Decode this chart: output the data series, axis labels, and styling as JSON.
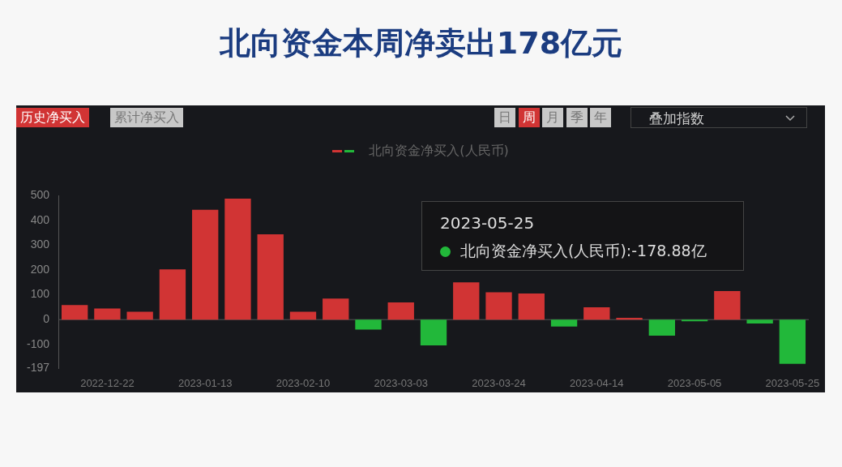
{
  "chart_data": {
    "type": "bar",
    "title": "北向资金本周净卖出178亿元",
    "categories": [
      null,
      "2022-12-22",
      null,
      null,
      "2023-01-13",
      null,
      null,
      "2023-02-10",
      null,
      null,
      "2023-03-03",
      null,
      null,
      "2023-03-24",
      null,
      null,
      "2023-04-14",
      null,
      null,
      "2023-05-05",
      null,
      null,
      "2023-05-25"
    ],
    "series": [
      {
        "name": "北向资金净买入(人民币)",
        "values": [
          59,
          45,
          32,
          203,
          443,
          488,
          344,
          32,
          85,
          -40,
          69,
          -104,
          150,
          110,
          105,
          -28,
          50,
          7,
          -65,
          -7,
          115,
          -16,
          -178.88
        ]
      }
    ],
    "colors": [
      "#d13434",
      "#d13434",
      "#d13434",
      "#d13434",
      "#d13434",
      "#d13434",
      "#d13434",
      "#d13434",
      "#d13434",
      "#22b83a",
      "#d13434",
      "#22b83a",
      "#d13434",
      "#d13434",
      "#d13434",
      "#22b83a",
      "#d13434",
      "#d13434",
      "#22b83a",
      "#22b83a",
      "#d13434",
      "#22b83a",
      "#22b83a"
    ],
    "ylim": [
      -197,
      500
    ],
    "yticks": [
      500,
      400,
      300,
      200,
      100,
      0,
      -100,
      -197
    ],
    "grid": false,
    "legend": "top",
    "ref_lines": [
      {
        "axis": "y",
        "value": 0,
        "color": "#555555"
      }
    ],
    "annotations": [
      "历史净买入",
      "累计净买入",
      "日",
      "周",
      "月",
      "季",
      "年",
      "叠加指数",
      "2023-05-25",
      "北向资金净买入(人民币):-178.88亿"
    ]
  }
}
